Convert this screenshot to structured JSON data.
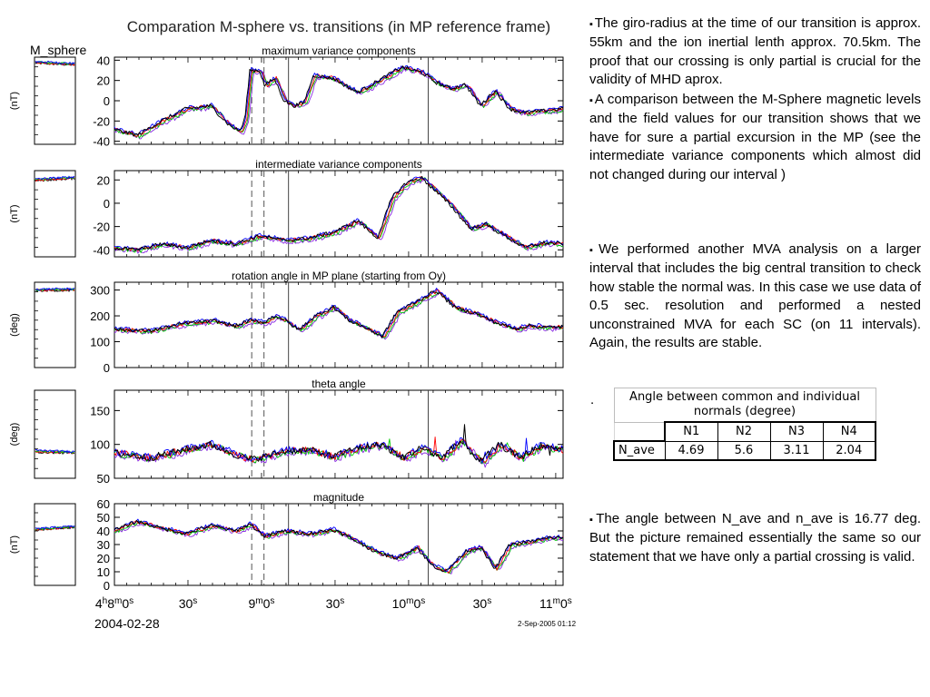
{
  "figure": {
    "title": "Comparation M-sphere vs. transitions (in MP reference frame)",
    "left_label": "M_sphere",
    "date_label": "2004-02-28",
    "stamp": "2-Sep-2005 01:12",
    "colors": {
      "black": "#000000",
      "red": "#ff0000",
      "green": "#00cc00",
      "blue": "#0000ff",
      "purple": "#8a2be2",
      "dashed": "#555555"
    }
  },
  "chart_data": {
    "type": "line",
    "x_axis": {
      "tick_labels": [
        {
          "pre": "4",
          "sup1": "h",
          "mid": "8",
          "sup2": "m",
          "post": "0",
          "sup3": "s",
          "at_seconds": 0
        },
        {
          "pre": "30",
          "sup1": "s",
          "at_seconds": 30
        },
        {
          "pre": "9",
          "sup1": "m",
          "mid": "0",
          "sup2": "s",
          "at_seconds": 60
        },
        {
          "pre": "30",
          "sup1": "s",
          "at_seconds": 90
        },
        {
          "pre": "10",
          "sup1": "m",
          "mid": "0",
          "sup2": "s",
          "at_seconds": 120
        },
        {
          "pre": "30",
          "sup1": "s",
          "at_seconds": 150
        },
        {
          "pre": "11",
          "sup1": "m",
          "mid": "0",
          "sup2": "s",
          "at_seconds": 180
        }
      ],
      "range_seconds": [
        0,
        183
      ],
      "dashed_lines_seconds": [
        56,
        61
      ],
      "solid_lines_seconds": [
        71,
        128
      ]
    },
    "panels": [
      {
        "id": "max",
        "title": "maximum variance components",
        "unit": "(nT)",
        "ylim": [
          -43,
          43
        ],
        "yticks": [
          -40,
          -20,
          0,
          20,
          40
        ],
        "series": {
          "black": [
            [
              0,
              -28
            ],
            [
              10,
              -34
            ],
            [
              20,
              -20
            ],
            [
              30,
              -8
            ],
            [
              40,
              -5
            ],
            [
              48,
              -25
            ],
            [
              52,
              -30
            ],
            [
              54,
              -18
            ],
            [
              56,
              30
            ],
            [
              60,
              30
            ],
            [
              62,
              15
            ],
            [
              66,
              22
            ],
            [
              70,
              0
            ],
            [
              74,
              -5
            ],
            [
              78,
              -2
            ],
            [
              82,
              25
            ],
            [
              90,
              22
            ],
            [
              100,
              8
            ],
            [
              110,
              22
            ],
            [
              118,
              33
            ],
            [
              126,
              28
            ],
            [
              132,
              18
            ],
            [
              138,
              12
            ],
            [
              144,
              16
            ],
            [
              150,
              -5
            ],
            [
              156,
              10
            ],
            [
              162,
              -8
            ],
            [
              168,
              -12
            ],
            [
              176,
              -10
            ],
            [
              183,
              -8
            ]
          ]
        },
        "m_sphere": [
          0,
          38,
          36
        ]
      },
      {
        "id": "int",
        "title": "intermediate variance components",
        "unit": "(nT)",
        "ylim": [
          -46,
          28
        ],
        "yticks": [
          -40,
          -20,
          0,
          20
        ],
        "series": {
          "black": [
            [
              0,
              -38
            ],
            [
              10,
              -40
            ],
            [
              20,
              -35
            ],
            [
              30,
              -38
            ],
            [
              40,
              -32
            ],
            [
              50,
              -35
            ],
            [
              60,
              -28
            ],
            [
              70,
              -32
            ],
            [
              80,
              -30
            ],
            [
              90,
              -25
            ],
            [
              100,
              -15
            ],
            [
              108,
              -30
            ],
            [
              114,
              5
            ],
            [
              120,
              18
            ],
            [
              126,
              22
            ],
            [
              132,
              10
            ],
            [
              138,
              -2
            ],
            [
              146,
              -22
            ],
            [
              152,
              -18
            ],
            [
              160,
              -28
            ],
            [
              168,
              -38
            ],
            [
              176,
              -34
            ],
            [
              183,
              -35
            ]
          ]
        },
        "m_sphere": [
          0,
          20,
          22
        ]
      },
      {
        "id": "rot",
        "title": "rotation angle in MP plane (starting from Oy)",
        "unit": "(deg)",
        "ylim": [
          0,
          330
        ],
        "yticks": [
          0,
          100,
          200,
          300
        ],
        "series": {
          "black": [
            [
              0,
              148
            ],
            [
              15,
              142
            ],
            [
              30,
              172
            ],
            [
              42,
              180
            ],
            [
              50,
              160
            ],
            [
              56,
              182
            ],
            [
              62,
              175
            ],
            [
              66,
              200
            ],
            [
              70,
              185
            ],
            [
              76,
              145
            ],
            [
              82,
              195
            ],
            [
              90,
              235
            ],
            [
              96,
              185
            ],
            [
              104,
              150
            ],
            [
              110,
              120
            ],
            [
              116,
              215
            ],
            [
              124,
              255
            ],
            [
              132,
              298
            ],
            [
              140,
              230
            ],
            [
              148,
              210
            ],
            [
              156,
              175
            ],
            [
              164,
              150
            ],
            [
              170,
              162
            ],
            [
              178,
              155
            ],
            [
              183,
              158
            ]
          ]
        },
        "m_sphere": [
          0,
          300,
          302
        ]
      },
      {
        "id": "theta",
        "title": "theta angle",
        "unit": "(deg)",
        "ylim": [
          50,
          180
        ],
        "yticks": [
          50,
          100,
          150
        ],
        "series": {
          "black": [
            [
              0,
              88
            ],
            [
              15,
              80
            ],
            [
              30,
              93
            ],
            [
              40,
              100
            ],
            [
              50,
              85
            ],
            [
              56,
              78
            ],
            [
              62,
              82
            ],
            [
              70,
              90
            ],
            [
              80,
              92
            ],
            [
              90,
              82
            ],
            [
              100,
              95
            ],
            [
              110,
              100
            ],
            [
              118,
              80
            ],
            [
              126,
              95
            ],
            [
              134,
              80
            ],
            [
              142,
              105
            ],
            [
              150,
              75
            ],
            [
              158,
              100
            ],
            [
              166,
              80
            ],
            [
              174,
              98
            ],
            [
              183,
              92
            ]
          ]
        },
        "m_sphere": [
          0,
          90,
          88
        ]
      },
      {
        "id": "mag",
        "title": "magnitude",
        "unit": "(nT)",
        "ylim": [
          0,
          60
        ],
        "yticks": [
          0,
          10,
          20,
          30,
          40,
          50,
          60
        ],
        "series": {
          "black": [
            [
              0,
              40
            ],
            [
              10,
              47
            ],
            [
              20,
              42
            ],
            [
              30,
              38
            ],
            [
              40,
              44
            ],
            [
              50,
              40
            ],
            [
              56,
              45
            ],
            [
              62,
              36
            ],
            [
              70,
              40
            ],
            [
              80,
              38
            ],
            [
              90,
              41
            ],
            [
              100,
              32
            ],
            [
              108,
              24
            ],
            [
              116,
              20
            ],
            [
              124,
              28
            ],
            [
              130,
              15
            ],
            [
              136,
              10
            ],
            [
              144,
              25
            ],
            [
              150,
              28
            ],
            [
              156,
              12
            ],
            [
              162,
              30
            ],
            [
              170,
              32
            ],
            [
              178,
              35
            ],
            [
              183,
              35
            ]
          ]
        },
        "m_sphere": [
          0,
          41,
          43
        ]
      }
    ]
  },
  "notes": {
    "giro": "The giro-radius at the time of our transition is approx. 55km and the ion inertial lenth approx. 70.5km. The proof that our crossing is only partial is crucial for the validity of MHD aprox.",
    "comparison": "A comparison between the M-Sphere magnetic levels and the field values for our transition shows that we have for sure a partial excursion in the MP (see the intermediate variance components which almost did not changed during our interval )",
    "mva": "We performed another MVA analysis on a larger interval that includes the big central transition to check how stable the normal was. In this case we use data of 0.5 sec. resolution and performed a nested unconstrained MVA for each SC (on 11 intervals). Again, the results are stable.",
    "dot": ".",
    "angle": "The angle between N_ave and n_ave is 16.77 deg. But the picture remained essentially the same so our statement that we have only a partial crossing is valid."
  },
  "angle_table": {
    "caption": "Angle between common and individual normals (degree)",
    "headers": [
      "N1",
      "N2",
      "N3",
      "N4"
    ],
    "row_label": "N_ave",
    "values": [
      "4.69",
      "5.6",
      "3.11",
      "2.04"
    ]
  }
}
